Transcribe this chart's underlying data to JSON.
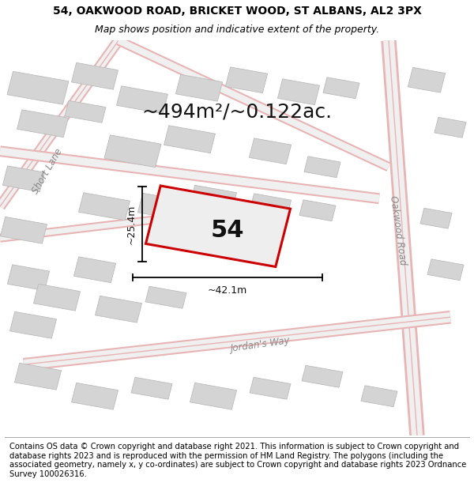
{
  "title_line1": "54, OAKWOOD ROAD, BRICKET WOOD, ST ALBANS, AL2 3PX",
  "title_line2": "Map shows position and indicative extent of the property.",
  "area_text": "~494m²/~0.122ac.",
  "property_number": "54",
  "dim_width": "~42.1m",
  "dim_height": "~25.4m",
  "footer_text": "Contains OS data © Crown copyright and database right 2021. This information is subject to Crown copyright and database rights 2023 and is reproduced with the permission of HM Land Registry. The polygons (including the associated geometry, namely x, y co-ordinates) are subject to Crown copyright and database rights 2023 Ordnance Survey 100026316.",
  "bg_color": "#ffffff",
  "map_bg": "#f8f8f8",
  "road_color_light": "#e8b4b4",
  "building_color": "#d4d4d4",
  "building_edge": "#bbbbbb",
  "property_fill": "#eeeeee",
  "property_edge": "#cc0000",
  "title_fontsize": 10,
  "subtitle_fontsize": 9,
  "area_fontsize": 18,
  "number_fontsize": 22,
  "dim_fontsize": 9,
  "footer_fontsize": 7.2,
  "street_label_fontsize": 8.5
}
